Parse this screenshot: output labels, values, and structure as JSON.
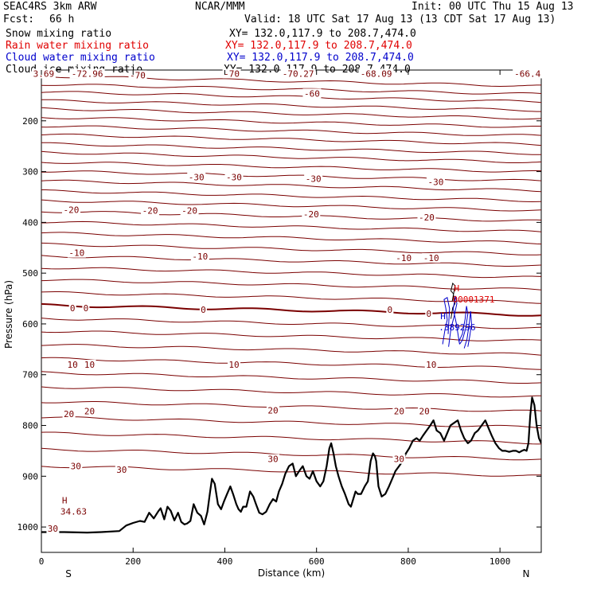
{
  "header": {
    "model": "SEAC4RS  3km ARW",
    "org": "NCAR/MMM",
    "init": "Init: 00 UTC Thu 15 Aug 13",
    "fcst_label": "Fcst:",
    "fcst_value": "66 h",
    "valid": "Valid: 18 UTC Sat 17 Aug 13 (13 CDT Sat 17 Aug 13)",
    "fields": [
      {
        "name": "Snow mixing ratio",
        "xy": "XY= 132.0,117.9 to 208.7,474.0",
        "color": "#000000"
      },
      {
        "name": "Rain water mixing ratio",
        "xy": "XY= 132.0,117.9 to 208.7,474.0",
        "color": "#e00000"
      },
      {
        "name": "Cloud water mixing ratio",
        "xy": "XY= 132.0,117.9 to 208.7,474.0",
        "color": "#0000cc"
      },
      {
        "name": "Cloud ice mixing ratio",
        "xy": "XY= 132.0,117.9 to 208.7,474.0",
        "color": "#000000"
      }
    ]
  },
  "chart_data": {
    "type": "line",
    "xlabel": "Distance (km)",
    "ylabel": "Pressure (hPa)",
    "xlim": [
      0,
      1090
    ],
    "ylim": [
      1050,
      100
    ],
    "x_ticks": [
      0,
      200,
      400,
      600,
      800,
      1000
    ],
    "y_ticks": [
      200,
      300,
      400,
      500,
      600,
      700,
      800,
      900,
      1000
    ],
    "x_end_labels": {
      "left": "S",
      "right": "N"
    },
    "contour_color": "#7a0000",
    "temperature_contour_pressures": [
      112,
      128,
      143,
      160,
      176,
      193,
      210,
      227,
      245,
      262,
      281,
      299,
      318,
      338,
      357,
      378,
      399,
      421,
      443,
      466,
      489,
      513,
      538,
      563,
      589,
      614,
      641,
      668,
      696,
      724,
      753,
      784,
      815,
      847,
      880
    ],
    "contour_labels": [
      {
        "text": "-70",
        "x": 210,
        "p": 110
      },
      {
        "text": "-70",
        "x": 415,
        "p": 107
      },
      {
        "text": "-60",
        "x": 590,
        "p": 146
      },
      {
        "text": "-30",
        "x": 338,
        "p": 311
      },
      {
        "text": "-30",
        "x": 420,
        "p": 311
      },
      {
        "text": "-30",
        "x": 593,
        "p": 314
      },
      {
        "text": "-30",
        "x": 860,
        "p": 320
      },
      {
        "text": "-20",
        "x": 65,
        "p": 375
      },
      {
        "text": "-20",
        "x": 237,
        "p": 377
      },
      {
        "text": "-20",
        "x": 323,
        "p": 377
      },
      {
        "text": "-20",
        "x": 588,
        "p": 384
      },
      {
        "text": "-20",
        "x": 840,
        "p": 390
      },
      {
        "text": "-10",
        "x": 77,
        "p": 460
      },
      {
        "text": "-10",
        "x": 346,
        "p": 467
      },
      {
        "text": "-10",
        "x": 790,
        "p": 470
      },
      {
        "text": "-10",
        "x": 850,
        "p": 470
      },
      {
        "text": "0",
        "x": 68,
        "p": 569
      },
      {
        "text": "0",
        "x": 97,
        "p": 569
      },
      {
        "text": "0",
        "x": 353,
        "p": 572
      },
      {
        "text": "0",
        "x": 760,
        "p": 572
      },
      {
        "text": "0",
        "x": 845,
        "p": 580
      },
      {
        "text": "10",
        "x": 68,
        "p": 680
      },
      {
        "text": "10",
        "x": 105,
        "p": 680
      },
      {
        "text": "10",
        "x": 420,
        "p": 680
      },
      {
        "text": "10",
        "x": 850,
        "p": 680
      },
      {
        "text": "20",
        "x": 60,
        "p": 777
      },
      {
        "text": "20",
        "x": 105,
        "p": 772
      },
      {
        "text": "20",
        "x": 505,
        "p": 770
      },
      {
        "text": "20",
        "x": 780,
        "p": 772
      },
      {
        "text": "20",
        "x": 835,
        "p": 772
      },
      {
        "text": "30",
        "x": 75,
        "p": 880
      },
      {
        "text": "30",
        "x": 175,
        "p": 887
      },
      {
        "text": "30",
        "x": 505,
        "p": 866
      },
      {
        "text": "30",
        "x": 780,
        "p": 866
      }
    ],
    "extrema_labels": [
      {
        "mark": "H",
        "text": "34.63",
        "x": 45,
        "p": 963,
        "color": "#7a0000"
      },
      {
        "mark": "H",
        "text": "00001371",
        "x": 900,
        "p": 545,
        "color": "#e00000"
      },
      {
        "mark": "H",
        "text": ".389296",
        "x": 870,
        "p": 600,
        "color": "#0000cc"
      }
    ],
    "clipped_top_labels": [
      {
        "text": "3.69",
        "x": 5,
        "p": 107
      },
      {
        "text": "-72.96",
        "x": 100,
        "p": 107
      },
      {
        "text": "-70.27",
        "x": 560,
        "p": 107
      },
      {
        "text": "-68.09",
        "x": 730,
        "p": 107
      },
      {
        "text": "-66.4",
        "x": 1060,
        "p": 107
      }
    ],
    "clipped_low_label": {
      "text": "30",
      "x": 25,
      "p": 1003
    },
    "terrain": {
      "x": [
        0,
        50,
        100,
        130,
        170,
        185,
        200,
        215,
        225,
        235,
        245,
        255,
        260,
        268,
        275,
        282,
        290,
        298,
        305,
        312,
        318,
        325,
        332,
        340,
        348,
        355,
        362,
        368,
        372,
        378,
        385,
        392,
        398,
        405,
        412,
        418,
        425,
        430,
        435,
        440,
        447,
        455,
        462,
        468,
        475,
        482,
        490,
        498,
        505,
        512,
        518,
        525,
        532,
        540,
        548,
        555,
        562,
        570,
        578,
        585,
        592,
        600,
        608,
        615,
        622,
        628,
        632,
        637,
        642,
        648,
        655,
        662,
        670,
        675,
        680,
        685,
        690,
        697,
        705,
        712,
        718,
        723,
        727,
        730,
        735,
        742,
        750,
        758,
        765,
        772,
        780,
        788,
        795,
        802,
        810,
        818,
        825,
        832,
        840,
        848,
        855,
        862,
        870,
        878,
        885,
        892,
        900,
        908,
        915,
        922,
        930,
        937,
        945,
        952,
        960,
        968,
        975,
        982,
        990,
        998,
        1005,
        1012,
        1020,
        1028,
        1035,
        1042,
        1048,
        1053,
        1058,
        1062,
        1066,
        1070,
        1075,
        1080,
        1085,
        1090
      ],
      "p": [
        1010,
        1010,
        1011,
        1010,
        1008,
        997,
        992,
        988,
        990,
        972,
        983,
        969,
        963,
        985,
        960,
        968,
        987,
        972,
        990,
        995,
        993,
        988,
        955,
        972,
        978,
        995,
        970,
        930,
        905,
        915,
        955,
        965,
        950,
        935,
        920,
        935,
        955,
        965,
        970,
        960,
        960,
        930,
        940,
        955,
        972,
        975,
        970,
        955,
        945,
        950,
        930,
        915,
        895,
        880,
        875,
        900,
        890,
        880,
        900,
        905,
        890,
        910,
        920,
        910,
        880,
        845,
        835,
        855,
        880,
        900,
        920,
        935,
        955,
        960,
        945,
        930,
        935,
        935,
        920,
        910,
        870,
        855,
        860,
        870,
        920,
        940,
        935,
        920,
        905,
        890,
        880,
        870,
        855,
        845,
        830,
        825,
        830,
        820,
        810,
        800,
        790,
        810,
        815,
        830,
        815,
        800,
        795,
        790,
        810,
        825,
        835,
        830,
        815,
        810,
        800,
        790,
        805,
        820,
        835,
        845,
        850,
        850,
        852,
        850,
        850,
        853,
        850,
        848,
        850,
        835,
        780,
        745,
        760,
        800,
        825,
        835
      ]
    },
    "snow_contours": [
      {
        "x": [
          893,
          897,
          902,
          898,
          893,
          897,
          902,
          896
        ],
        "p": [
          590,
          568,
          560,
          540,
          535,
          520,
          525,
          555
        ],
        "color": "#000000"
      }
    ],
    "cloud_water_contours": [
      {
        "x": [
          875,
          880,
          885,
          882,
          878,
          885,
          890,
          887
        ],
        "p": [
          640,
          612,
          592,
          570,
          552,
          548,
          570,
          620
        ],
        "color": "#0000cc"
      },
      {
        "x": [
          888,
          893,
          900,
          906,
          903,
          898,
          905,
          912
        ],
        "p": [
          645,
          610,
          585,
          560,
          545,
          570,
          600,
          640
        ],
        "color": "#0000cc"
      },
      {
        "x": [
          910,
          918,
          924,
          927,
          930,
          925,
          918,
          912
        ],
        "p": [
          635,
          620,
          590,
          565,
          580,
          610,
          632,
          640
        ],
        "color": "#0000cc"
      },
      {
        "x": [
          922,
          928,
          933,
          936,
          938,
          934,
          930
        ],
        "p": [
          648,
          630,
          600,
          575,
          600,
          625,
          645
        ],
        "color": "#0000cc"
      }
    ]
  }
}
